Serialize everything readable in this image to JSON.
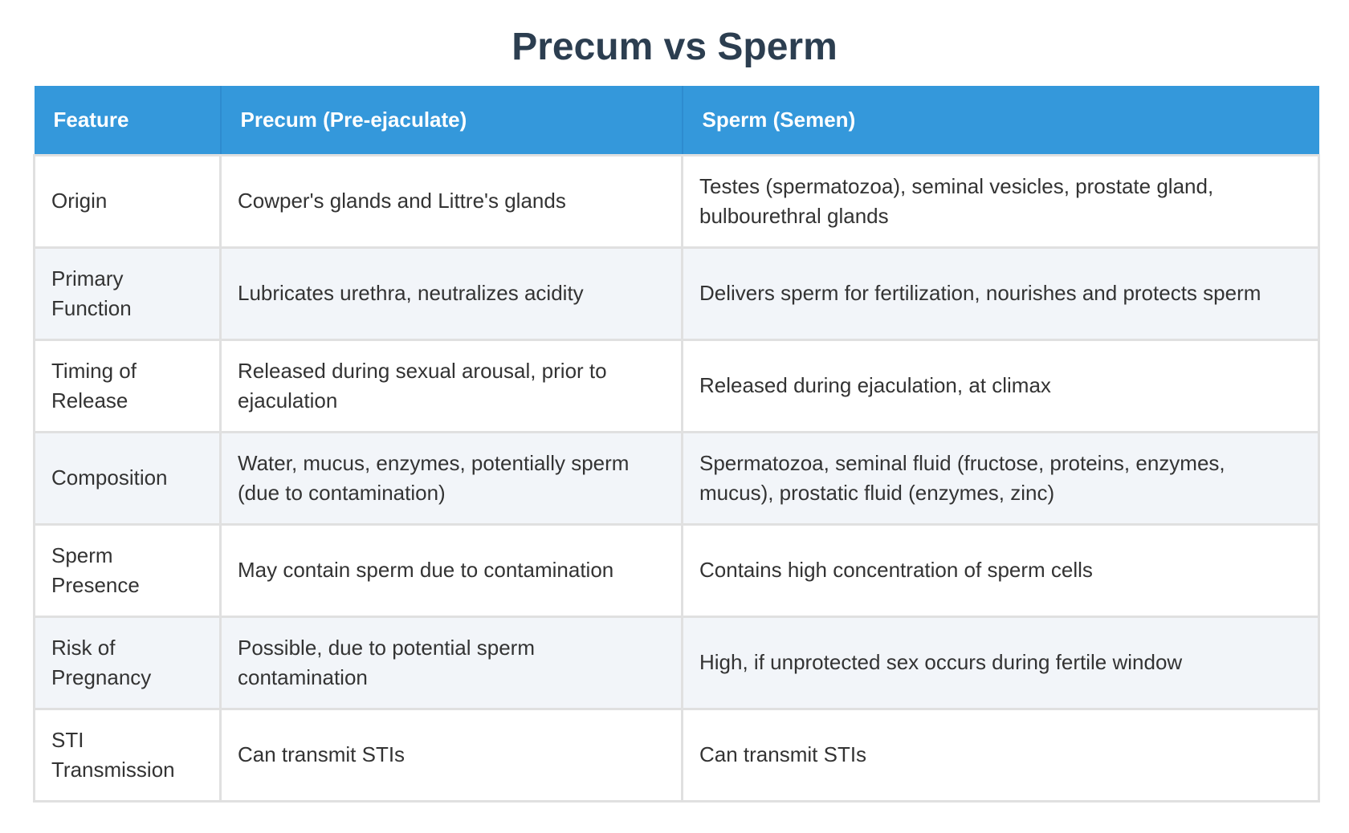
{
  "title": "Precum vs Sperm",
  "table": {
    "headers": [
      "Feature",
      "Precum (Pre-ejaculate)",
      "Sperm (Semen)"
    ],
    "rows": [
      [
        "Origin",
        "Cowper's glands and Littre's glands",
        "Testes (spermatozoa), seminal vesicles, prostate gland, bulbourethral glands"
      ],
      [
        "Primary Function",
        "Lubricates urethra, neutralizes acidity",
        "Delivers sperm for fertilization, nourishes and protects sperm"
      ],
      [
        "Timing of Release",
        "Released during sexual arousal, prior to ejaculation",
        "Released during ejaculation, at climax"
      ],
      [
        "Composition",
        "Water, mucus, enzymes, potentially sperm (due to contamination)",
        "Spermatozoa, seminal fluid (fructose, proteins, enzymes, mucus), prostatic fluid (enzymes, zinc)"
      ],
      [
        "Sperm Presence",
        "May contain sperm due to contamination",
        "Contains high concentration of sperm cells"
      ],
      [
        "Risk of Pregnancy",
        "Possible, due to potential sperm contamination",
        "High, if unprotected sex occurs during fertile window"
      ],
      [
        "STI Transmission",
        "Can transmit STIs",
        "Can transmit STIs"
      ]
    ]
  },
  "colors": {
    "header_bg": "#3498db",
    "title": "#2c3e50",
    "row_alt_bg": "#f2f5f9",
    "border": "#e0e0e0"
  }
}
